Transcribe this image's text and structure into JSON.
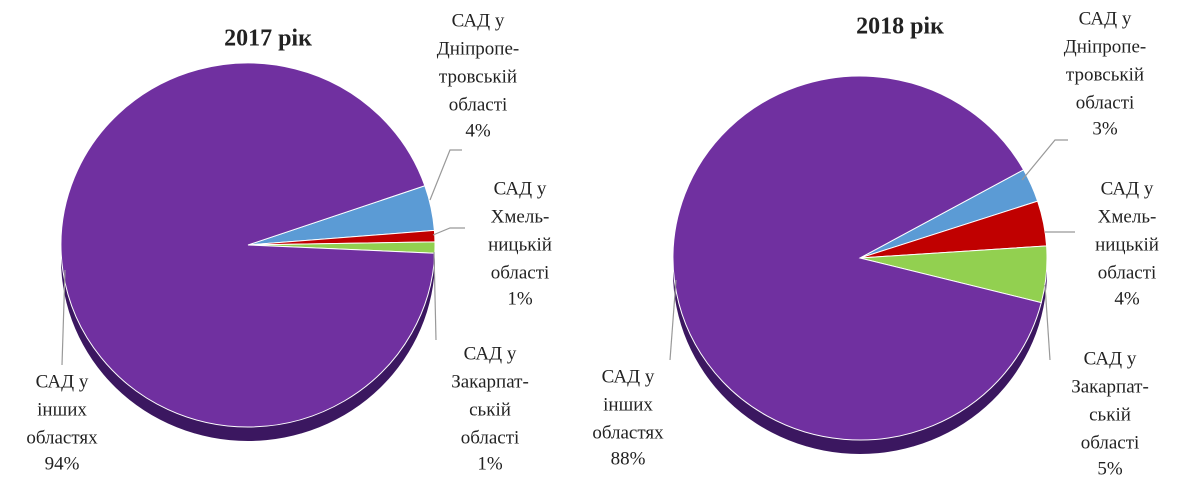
{
  "chart_data": [
    {
      "type": "pie",
      "title": "2017 рік",
      "categories": [
        [
          "САД у",
          "Дніпропе-",
          "тровській",
          "області"
        ],
        [
          "САД у",
          "Хмель-",
          "ницькій",
          "області"
        ],
        [
          "САД у",
          "Закарпат-",
          "ській",
          "області"
        ],
        [
          "САД у",
          "інших",
          "областях"
        ]
      ],
      "values": [
        4,
        1,
        1,
        94
      ],
      "value_labels": [
        "4%",
        "1%",
        "1%",
        "94%"
      ],
      "colors": [
        "#5b9bd5",
        "#c00000",
        "#92d050",
        "#7030a0"
      ]
    },
    {
      "type": "pie",
      "title": "2018 рік",
      "categories": [
        [
          "САД у",
          "Дніпропе-",
          "тровській",
          "області"
        ],
        [
          "САД у",
          "Хмель-",
          "ницькій",
          "області"
        ],
        [
          "САД у",
          "Закарпат-",
          "ській",
          "області"
        ],
        [
          "САД у",
          "інших",
          "областях"
        ]
      ],
      "values": [
        3,
        4,
        5,
        88
      ],
      "value_labels": [
        "3%",
        "4%",
        "5%",
        "88%"
      ],
      "colors": [
        "#5b9bd5",
        "#c00000",
        "#92d050",
        "#7030a0"
      ]
    }
  ]
}
